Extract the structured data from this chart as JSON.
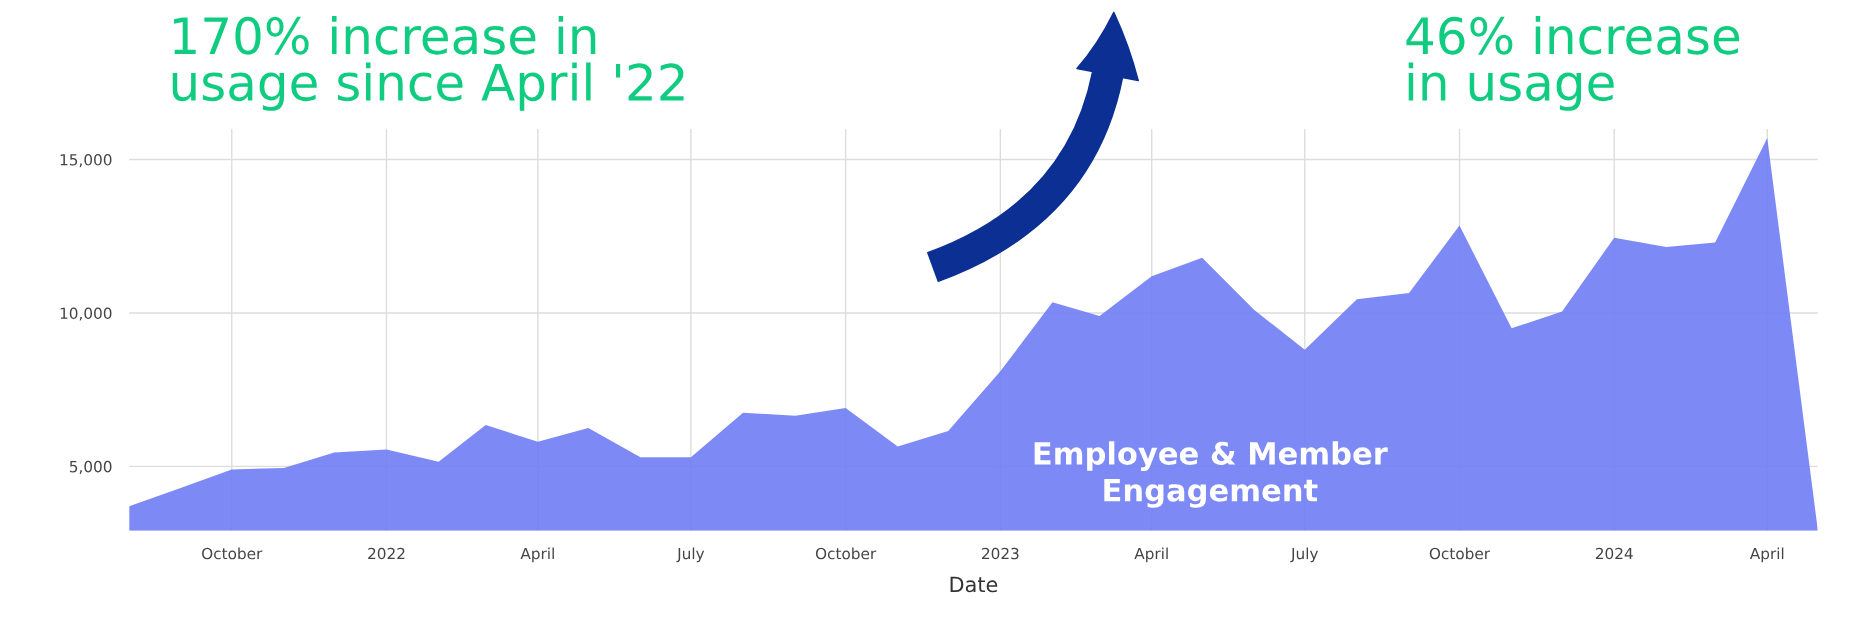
{
  "chart_data": {
    "type": "area",
    "xlabel": "Date",
    "x": [
      "2021-08",
      "2021-09",
      "2021-10",
      "2021-11",
      "2021-12",
      "2022-01",
      "2022-02",
      "2022-03",
      "2022-04",
      "2022-05",
      "2022-06",
      "2022-07",
      "2022-08",
      "2022-09",
      "2022-10",
      "2022-11",
      "2022-12",
      "2023-01",
      "2023-02",
      "2023-03",
      "2023-04",
      "2023-05",
      "2023-06",
      "2023-07",
      "2023-08",
      "2023-09",
      "2023-10",
      "2023-11",
      "2023-12",
      "2024-01",
      "2024-02",
      "2024-03",
      "2024-04",
      "2024-05"
    ],
    "series": [
      {
        "color": "#6f7cf4",
        "values": [
          3700,
          4300,
          4900,
          4950,
          5450,
          5550,
          5150,
          6350,
          5800,
          6250,
          5300,
          5300,
          6750,
          6650,
          6900,
          5650,
          6150,
          8100,
          10350,
          9900,
          11200,
          11800,
          10100,
          8800,
          10450,
          10650,
          12850,
          9500,
          10050,
          12450,
          12150,
          12300,
          15700,
          2950
        ]
      }
    ],
    "xlim": [
      "2021-08",
      "2024-05"
    ],
    "xticks": [
      {
        "value": "2021-10",
        "label": "October"
      },
      {
        "value": "2022-01",
        "label": "2022"
      },
      {
        "value": "2022-04",
        "label": "April"
      },
      {
        "value": "2022-07",
        "label": "July"
      },
      {
        "value": "2022-10",
        "label": "October"
      },
      {
        "value": "2023-01",
        "label": "2023"
      },
      {
        "value": "2023-04",
        "label": "April"
      },
      {
        "value": "2023-07",
        "label": "July"
      },
      {
        "value": "2023-10",
        "label": "October"
      },
      {
        "value": "2024-01",
        "label": "2024"
      },
      {
        "value": "2024-04",
        "label": "April"
      }
    ],
    "ylim": [
      2900,
      16000
    ],
    "yticks": [
      {
        "value": 5000,
        "label": "5,000"
      },
      {
        "value": 10000,
        "label": "10,000"
      },
      {
        "value": 15000,
        "label": "15,000"
      }
    ],
    "grid": true,
    "annotations": [
      "170% increase in\nusage since April '22",
      "46% increase\nin usage",
      "Employee & Member\nEngagement"
    ]
  }
}
